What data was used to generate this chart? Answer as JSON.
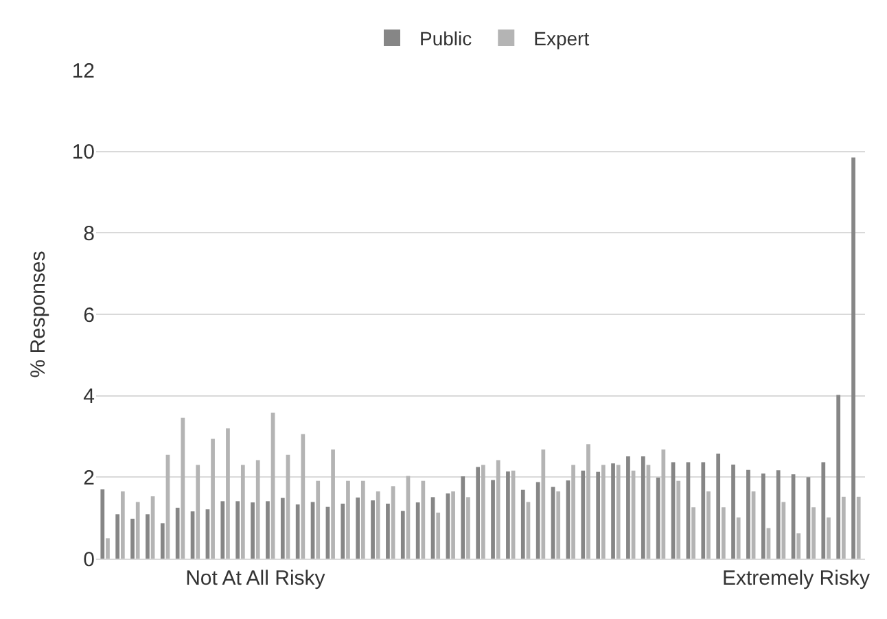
{
  "chart_data": {
    "type": "bar",
    "ylabel": "% Responses",
    "categories": [
      null,
      null,
      null,
      null,
      null,
      null,
      null,
      null,
      null,
      null,
      "Not At All Risky",
      null,
      null,
      null,
      null,
      null,
      null,
      null,
      null,
      null,
      null,
      null,
      null,
      null,
      null,
      null,
      null,
      null,
      null,
      null,
      null,
      null,
      null,
      null,
      null,
      null,
      null,
      null,
      null,
      null,
      null,
      null,
      null,
      null,
      null,
      null,
      "Extremely Risky",
      null,
      null,
      null,
      null
    ],
    "series": [
      {
        "name": "Public",
        "color": "#868686",
        "values": [
          1.7,
          1.09,
          0.98,
          1.09,
          0.87,
          1.25,
          1.16,
          1.21,
          1.41,
          1.41,
          1.38,
          1.41,
          1.49,
          1.33,
          1.39,
          1.27,
          1.35,
          1.5,
          1.43,
          1.35,
          1.17,
          1.38,
          1.51,
          1.6,
          2.02,
          2.25,
          1.93,
          2.14,
          1.69,
          1.88,
          1.76,
          1.92,
          2.16,
          2.13,
          2.34,
          2.51,
          2.51,
          1.99,
          2.37,
          2.37,
          2.37,
          2.58,
          2.31,
          2.18,
          2.09,
          2.17,
          2.07,
          2.0,
          2.37,
          4.02,
          9.85
        ]
      },
      {
        "name": "Expert",
        "color": "#b4b4b4",
        "values": [
          0.5,
          1.65,
          1.39,
          1.53,
          2.55,
          3.46,
          2.3,
          2.94,
          3.2,
          2.3,
          2.42,
          3.58,
          2.55,
          3.06,
          1.91,
          2.68,
          1.91,
          1.91,
          1.65,
          1.78,
          2.03,
          1.91,
          1.13,
          1.65,
          1.51,
          2.3,
          2.42,
          2.16,
          1.39,
          2.68,
          1.65,
          2.3,
          2.81,
          2.3,
          2.3,
          2.16,
          2.3,
          2.68,
          1.91,
          1.26,
          1.65,
          1.26,
          1.01,
          1.65,
          0.75,
          1.39,
          0.62,
          1.26,
          1.01,
          1.52,
          1.52
        ]
      }
    ],
    "ylim": [
      0,
      12
    ],
    "yticks": [
      0,
      2,
      4,
      6,
      8,
      10,
      12
    ],
    "grid": "y",
    "legend": "top"
  }
}
